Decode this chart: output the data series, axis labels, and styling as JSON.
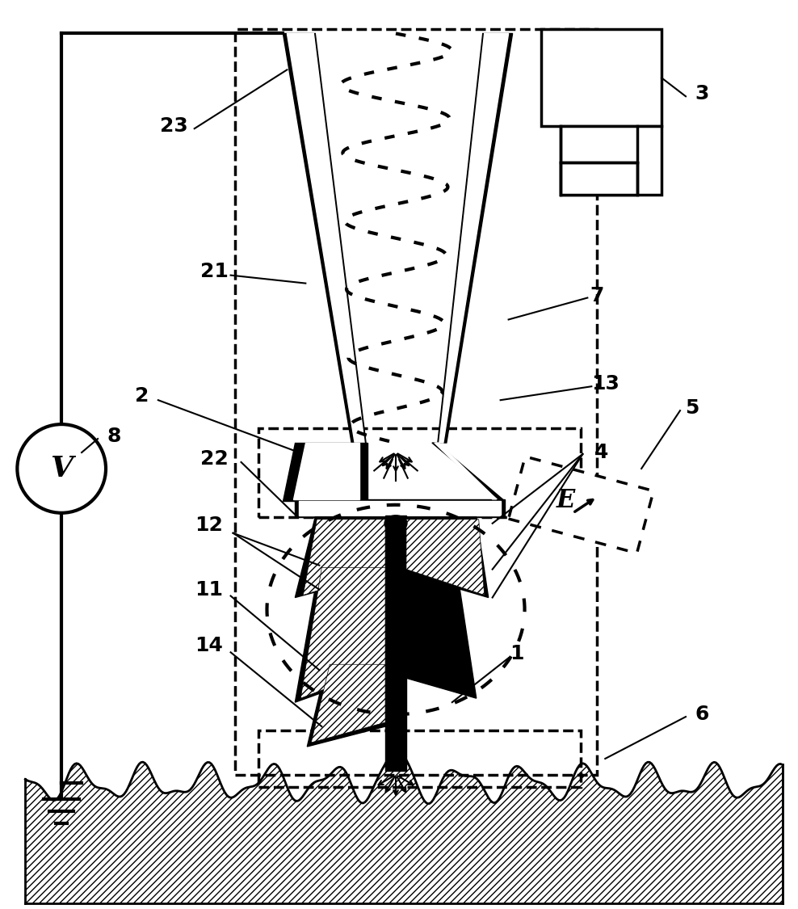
{
  "fig_width": 9.88,
  "fig_height": 11.25,
  "dpi": 100,
  "bg_color": "#ffffff",
  "black": "#000000"
}
